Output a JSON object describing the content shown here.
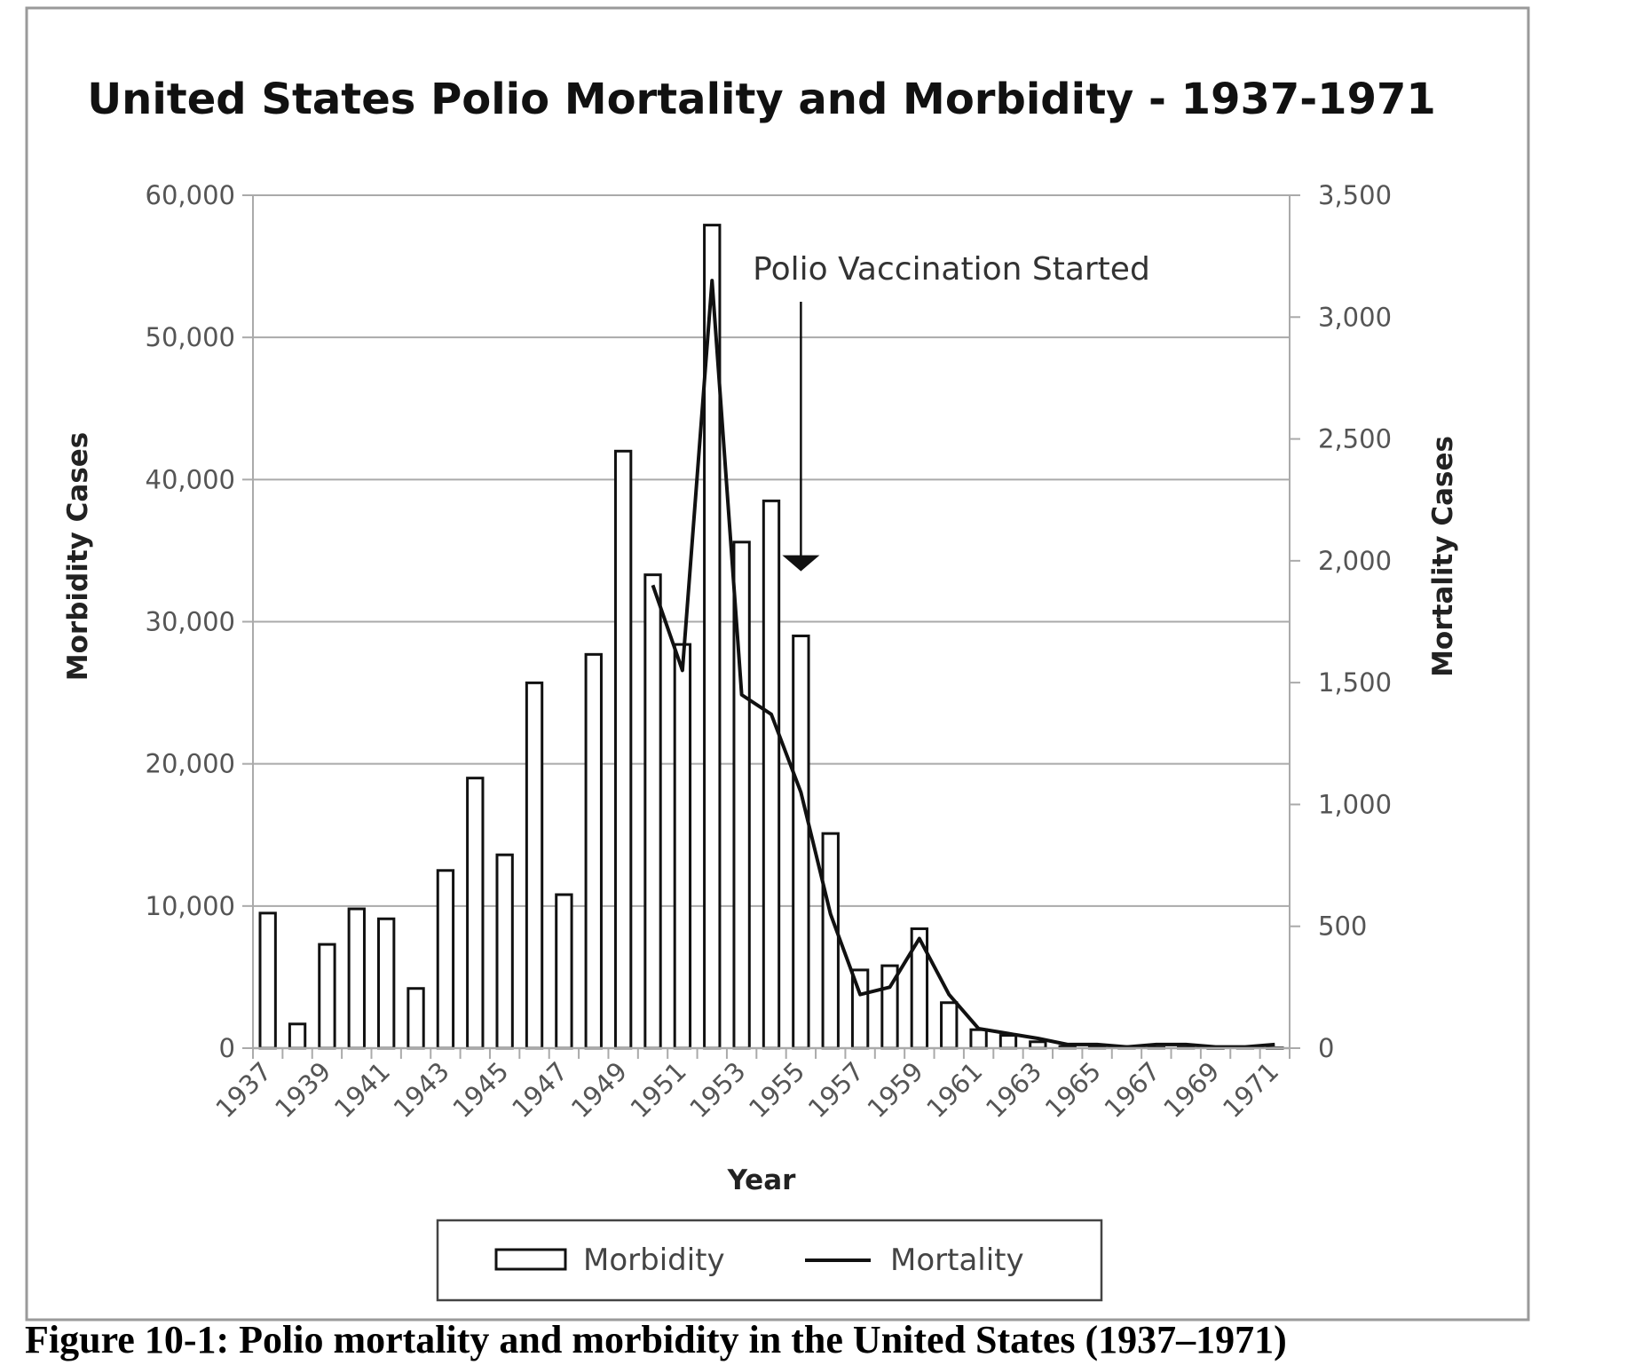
{
  "caption": "Figure 10-1: Polio mortality and morbidity in the United States (1937–1971)",
  "chart_data": {
    "type": "bar",
    "title": "United States Polio Mortality and Morbidity - 1937-1971",
    "xlabel": "Year",
    "ylabel": "Morbidity Cases",
    "y2label": "Mortality Cases",
    "ylim": [
      0,
      60000
    ],
    "y2lim": [
      0,
      3500
    ],
    "yticks": [
      "0",
      "10,000",
      "20,000",
      "30,000",
      "40,000",
      "50,000",
      "60,000"
    ],
    "y2ticks": [
      "0",
      "500",
      "1,000",
      "1,500",
      "2,000",
      "2,500",
      "3,000",
      "3,500"
    ],
    "grid": true,
    "legend_position": "bottom",
    "x": [
      1937,
      1938,
      1939,
      1940,
      1941,
      1942,
      1943,
      1944,
      1945,
      1946,
      1947,
      1948,
      1949,
      1950,
      1951,
      1952,
      1953,
      1954,
      1955,
      1956,
      1957,
      1958,
      1959,
      1960,
      1961,
      1962,
      1963,
      1964,
      1965,
      1966,
      1967,
      1968,
      1969,
      1970,
      1971
    ],
    "x_tick_labels": [
      "1937",
      "1939",
      "1941",
      "1943",
      "1945",
      "1947",
      "1949",
      "1951",
      "1953",
      "1955",
      "1957",
      "1959",
      "1961",
      "1963",
      "1965",
      "1967",
      "1969",
      "1971"
    ],
    "series": [
      {
        "name": "Morbidity",
        "kind": "bar",
        "axis": "left",
        "values": [
          9500,
          1700,
          7300,
          9800,
          9100,
          4200,
          12500,
          19000,
          13600,
          25700,
          10800,
          27700,
          42000,
          33300,
          28400,
          57900,
          35600,
          38500,
          29000,
          15100,
          5500,
          5800,
          8400,
          3200,
          1300,
          900,
          450,
          120,
          70,
          110,
          40,
          50,
          20,
          30,
          20
        ]
      },
      {
        "name": "Mortality",
        "kind": "line",
        "axis": "right",
        "values": [
          null,
          null,
          null,
          null,
          null,
          null,
          null,
          null,
          null,
          null,
          null,
          null,
          null,
          1900,
          1550,
          3150,
          1450,
          1370,
          1050,
          550,
          220,
          250,
          450,
          220,
          80,
          60,
          40,
          15,
          15,
          5,
          15,
          15,
          5,
          5,
          15
        ]
      }
    ],
    "annotations": [
      {
        "text": "Polio Vaccination Started",
        "x": 1955,
        "y": 1950,
        "axis": "right"
      }
    ],
    "colors": {
      "bar_fill": "#ffffff",
      "bar_stroke": "#111111",
      "line": "#111111",
      "grid": "#aaaaaa",
      "frame": "#999999"
    }
  }
}
